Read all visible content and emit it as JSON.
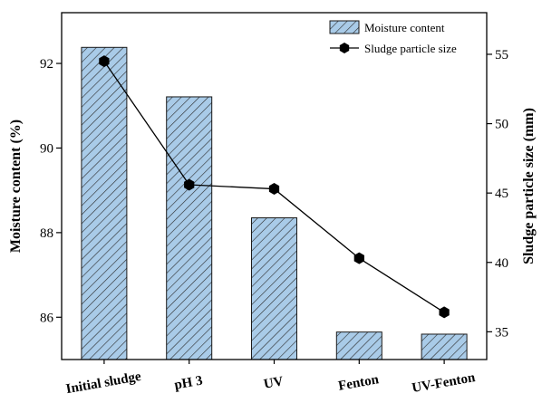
{
  "chart_data": {
    "type": "bar+line",
    "categories": [
      "Initial sludge",
      "pH 3",
      "UV",
      "Fenton",
      "UV-Fenton"
    ],
    "series": [
      {
        "name": "Moisture content",
        "type": "bar",
        "axis": "left",
        "values": [
          92.38,
          91.21,
          88.35,
          85.65,
          85.6
        ],
        "fill": "#a9cbe8",
        "hatch": "diagonal"
      },
      {
        "name": "Sludge particle size",
        "type": "line",
        "axis": "right",
        "values": [
          54.5,
          45.6,
          45.3,
          40.3,
          36.4
        ],
        "color": "#000000",
        "marker": "hexagon"
      }
    ],
    "ylabel": "Moisture content (%)",
    "y2label": "Sludge particle size (mm)",
    "ylim": [
      85.0,
      93.2
    ],
    "y2lim": [
      33.0,
      58.0
    ],
    "yticks": [
      86,
      88,
      90,
      92
    ],
    "y2ticks": [
      35,
      40,
      45,
      50,
      55
    ],
    "grid": false,
    "legend_position": "top-right"
  }
}
